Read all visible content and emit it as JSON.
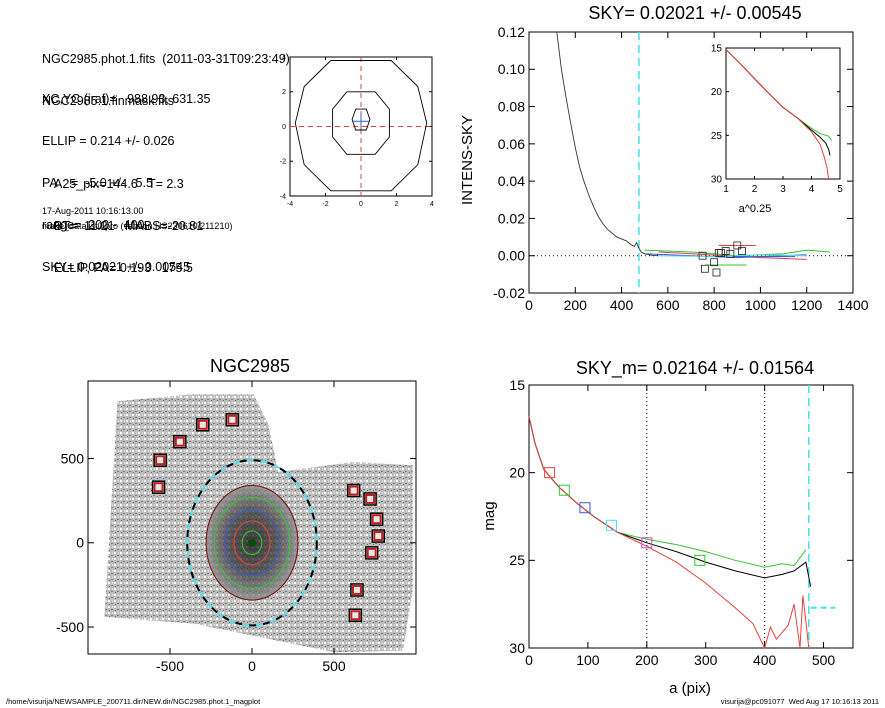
{
  "info": {
    "lines1": [
      "NGC2985.phot.1.fits  (2011-03-31T09:23:49)",
      "NGC2985.1.finmask.fits"
    ],
    "lines2": [
      "XC,YC (iraf)=   988.93, 631.35",
      "ELLIP = 0.214 +/- 0.026",
      "PA    =  -5.0 +/-   5.5",
      "range=  200.-  400.",
      "SKY= 0.02021 +/- 0.00545"
    ],
    "lines3": [
      "A25_pix=144.6   T= 2.3",
      "BT=  11.21   MABS=-20.81",
      "ELLIP, PA= 0.193   175.5"
    ],
    "date": "17-Aug-2011 10:16:13.00",
    "program": "make_datalist0.pro (version HS230610/211210)"
  },
  "footer": {
    "left": "/home/visurija/NEWSAMPLE_200711.dir/NEW.dir/NGC2985.phot.1_magplot",
    "right": "visurija@pc091077  Wed Aug 17 10:16:13 2011"
  },
  "colors": {
    "red": "#e8403f",
    "green": "#34c434",
    "blue": "#3a5ad8",
    "cyan": "#4fe0f0",
    "maroon": "#7a1111"
  },
  "chart_data": [
    {
      "id": "contour",
      "type": "contour",
      "xlim": [
        -4,
        4
      ],
      "ylim": [
        -4,
        4
      ],
      "xticks": [
        -4,
        -2,
        0,
        2,
        4
      ],
      "yticks": [
        -4,
        -2,
        0,
        2,
        4
      ],
      "xticklabels": [
        "-4",
        "-2",
        "0",
        "2",
        "4"
      ],
      "yticklabels": [
        "-4",
        "-2",
        "0",
        "2",
        "4"
      ],
      "contours": [
        [
          [
            -0.3,
            1.0
          ],
          [
            0.3,
            1.0
          ],
          [
            0.5,
            0.4
          ],
          [
            0.3,
            -0.2
          ],
          [
            -0.3,
            -0.2
          ],
          [
            -0.5,
            0.4
          ],
          [
            -0.3,
            1.0
          ]
        ],
        [
          [
            -0.8,
            2.0
          ],
          [
            0.8,
            2.0
          ],
          [
            1.6,
            1.0
          ],
          [
            1.6,
            -0.6
          ],
          [
            0.8,
            -1.6
          ],
          [
            -0.8,
            -1.6
          ],
          [
            -1.6,
            -0.6
          ],
          [
            -1.6,
            1.0
          ],
          [
            -0.8,
            2.0
          ]
        ],
        [
          [
            -1.7,
            3.8
          ],
          [
            1.7,
            3.8
          ],
          [
            3.2,
            2.3
          ],
          [
            3.7,
            0.2
          ],
          [
            3.2,
            -2.2
          ],
          [
            1.7,
            -3.7
          ],
          [
            -1.7,
            -3.7
          ],
          [
            -3.2,
            -2.2
          ],
          [
            -3.7,
            0.2
          ],
          [
            -3.2,
            2.3
          ],
          [
            -1.7,
            3.8
          ]
        ]
      ],
      "center": [
        0,
        0.3
      ]
    },
    {
      "id": "intens",
      "type": "line",
      "title": "SKY= 0.02021 +/- 0.00545",
      "xlabel": "",
      "ylabel": "INTENS-SKY",
      "xlim": [
        0,
        1400
      ],
      "ylim": [
        -0.02,
        0.12
      ],
      "xticks": [
        0,
        200,
        400,
        600,
        800,
        1000,
        1200,
        1400
      ],
      "xticklabels": [
        "0",
        "200",
        "400",
        "600",
        "800",
        "1000",
        "1200",
        "1400"
      ],
      "yticks": [
        -0.02,
        0,
        0.02,
        0.04,
        0.06,
        0.08,
        0.1,
        0.12
      ],
      "yticklabels": [
        "-0.02",
        "0.00",
        "0.02",
        "0.04",
        "0.06",
        "0.08",
        "0.10",
        "0.12"
      ],
      "sky_line_x": 475,
      "profile": {
        "x": [
          120,
          140,
          160,
          180,
          200,
          220,
          240,
          260,
          280,
          300,
          320,
          340,
          360,
          380,
          400,
          420,
          440,
          455,
          465,
          475,
          485,
          500,
          520,
          540,
          560
        ],
        "y": [
          0.12,
          0.1,
          0.085,
          0.071,
          0.058,
          0.047,
          0.039,
          0.032,
          0.026,
          0.021,
          0.017,
          0.014,
          0.012,
          0.01,
          0.009,
          0.008,
          0.006,
          0.005,
          0.007,
          0.004,
          0.002,
          0.001,
          0.0005,
          0,
          0.0005
        ]
      },
      "outer_profiles": [
        {
          "color": "red",
          "x": [
            560,
            700,
            850,
            1000,
            1200
          ],
          "y": [
            0.002,
            0.001,
            0.0,
            -0.001,
            -0.002
          ]
        },
        {
          "color": "green",
          "x": [
            500,
            700,
            900,
            1100,
            1200,
            1300
          ],
          "y": [
            0.003,
            0.002,
            0.0,
            0.001,
            0.003,
            0.002
          ]
        },
        {
          "color": "blue",
          "x": [
            500,
            700,
            900,
            1100,
            1200
          ],
          "y": [
            0.001,
            0.0,
            -0.001,
            0.0,
            0.0005
          ]
        },
        {
          "color": "cyan",
          "x": [
            560,
            800,
            1000,
            1200
          ],
          "y": [
            0.0,
            -0.0005,
            0.0005,
            0.0
          ]
        }
      ],
      "sky_boxes": {
        "x": [
          750,
          800,
          820,
          850,
          870,
          900,
          920,
          760,
          810,
          830
        ],
        "y": [
          0.0,
          -0.0035,
          0.0015,
          0.0025,
          0.001,
          0.0055,
          0.0025,
          -0.007,
          -0.009,
          0.0015
        ]
      },
      "flat_segments": [
        {
          "color": "red",
          "x": [
            820,
            980
          ],
          "y": [
            0.0055,
            0.0055
          ]
        },
        {
          "color": "green",
          "x": [
            760,
            940
          ],
          "y": [
            -0.005,
            -0.005
          ]
        },
        {
          "color": "blue",
          "x": [
            880,
            1150
          ],
          "y": [
            -0.0005,
            -0.0005
          ]
        }
      ]
    },
    {
      "id": "inset",
      "type": "line",
      "xlabel": "a^0.25",
      "ylabel": "",
      "xlim": [
        1,
        5
      ],
      "ylim": [
        30,
        15
      ],
      "xticks": [
        1,
        2,
        3,
        4,
        5
      ],
      "xticklabels": [
        "1",
        "2",
        "3",
        "4",
        "5"
      ],
      "yticks": [
        15,
        20,
        25,
        30
      ],
      "yticklabels": [
        "15",
        "20",
        "25",
        "30"
      ],
      "series": [
        {
          "color": "green",
          "x": [
            1.0,
            1.5,
            2.0,
            2.5,
            3.0,
            3.5,
            4.0,
            4.3,
            4.6,
            4.7
          ],
          "y": [
            15.2,
            16.8,
            18.5,
            20.2,
            21.8,
            23.0,
            24.2,
            24.8,
            25.1,
            25.6
          ]
        },
        {
          "color": "black",
          "x": [
            1.0,
            1.5,
            2.0,
            2.5,
            3.0,
            3.5,
            4.0,
            4.3,
            4.5,
            4.6,
            4.65
          ],
          "y": [
            15.2,
            16.8,
            18.5,
            20.2,
            21.8,
            23.0,
            24.4,
            25.2,
            25.9,
            26.6,
            27.3
          ]
        },
        {
          "color": "red",
          "x": [
            1.0,
            1.5,
            2.0,
            2.5,
            3.0,
            3.5,
            4.0,
            4.3,
            4.45,
            4.55,
            4.6
          ],
          "y": [
            15.2,
            16.8,
            18.5,
            20.2,
            21.8,
            23.0,
            24.6,
            26.0,
            27.5,
            28.8,
            30.0
          ]
        }
      ]
    },
    {
      "id": "image",
      "type": "image",
      "title": "NGC2985",
      "xlim": [
        -1000,
        1000
      ],
      "ylim": [
        -660,
        960
      ],
      "xticks": [
        -500,
        0,
        500
      ],
      "xticklabels": [
        "-500",
        "0",
        "500"
      ],
      "yticks": [
        -500,
        0,
        500
      ],
      "yticklabels": [
        "-500",
        "0",
        "500"
      ],
      "field_polygon": [
        [
          -820,
          840
        ],
        [
          -380,
          880
        ],
        [
          10,
          880
        ],
        [
          100,
          700
        ],
        [
          160,
          420
        ],
        [
          620,
          480
        ],
        [
          980,
          460
        ],
        [
          980,
          -280
        ],
        [
          920,
          -640
        ],
        [
          500,
          -650
        ],
        [
          -350,
          -480
        ],
        [
          -900,
          -440
        ]
      ],
      "mask_boxes": {
        "x": [
          -570,
          -560,
          -440,
          -300,
          -120,
          620,
          720,
          760,
          770,
          730,
          640,
          630
        ],
        "y": [
          330,
          490,
          600,
          700,
          730,
          310,
          260,
          140,
          40,
          -60,
          -280,
          -430
        ]
      },
      "ellipses": [
        {
          "color": "maroon",
          "a": 280,
          "b": 340
        },
        {
          "color": "cyan",
          "a": 395,
          "b": 490
        },
        {
          "color": "black",
          "a": 395,
          "b": 490
        },
        {
          "color": "green",
          "a": 230,
          "b": 270
        },
        {
          "color": "blue",
          "a": 165,
          "b": 195
        },
        {
          "color": "red",
          "a": 110,
          "b": 130
        },
        {
          "color": "green",
          "a": 60,
          "b": 70
        }
      ]
    },
    {
      "id": "mag",
      "type": "line",
      "title": "SKY_m=  0.02164 +/- 0.01564",
      "xlabel": "a (pix)",
      "ylabel": "mag",
      "xlim": [
        0,
        550
      ],
      "ylim": [
        30,
        15
      ],
      "xticks": [
        0,
        100,
        200,
        300,
        400,
        500
      ],
      "xticklabels": [
        "0",
        "100",
        "200",
        "300",
        "400",
        "500"
      ],
      "yticks": [
        15,
        20,
        25,
        30
      ],
      "yticklabels": [
        "15",
        "20",
        "25",
        "30"
      ],
      "dotted_x": [
        200,
        400
      ],
      "cyan_x": 475,
      "series": [
        {
          "color": "green",
          "x": [
            0,
            10,
            25,
            50,
            80,
            110,
            150,
            200,
            250,
            300,
            350,
            400,
            430,
            450,
            470
          ],
          "y": [
            16.8,
            18.3,
            19.8,
            20.8,
            21.7,
            22.5,
            23.4,
            23.8,
            24.1,
            24.5,
            25.0,
            25.4,
            25.2,
            25.3,
            24.4
          ]
        },
        {
          "color": "black",
          "x": [
            0,
            10,
            25,
            50,
            80,
            110,
            150,
            200,
            250,
            300,
            350,
            400,
            430,
            450,
            470,
            478
          ],
          "y": [
            16.8,
            18.3,
            19.8,
            20.8,
            21.7,
            22.5,
            23.4,
            24.0,
            24.5,
            25.1,
            25.6,
            26.0,
            25.8,
            25.6,
            25.1,
            26.5
          ]
        },
        {
          "color": "red",
          "x": [
            0,
            10,
            25,
            50,
            80,
            110,
            150,
            200,
            250,
            300,
            350,
            380,
            400,
            410,
            420,
            440,
            450,
            460,
            465,
            470,
            475
          ],
          "y": [
            16.8,
            18.3,
            19.8,
            20.8,
            21.7,
            22.5,
            23.4,
            24.2,
            25.1,
            26.3,
            27.7,
            28.6,
            30.0,
            28.8,
            29.5,
            28.7,
            27.5,
            30.0,
            27.0,
            28.5,
            30.0
          ]
        }
      ],
      "cyan_tail": {
        "x": [
          478,
          490,
          520
        ],
        "y": [
          27.7,
          27.7,
          27.7
        ]
      },
      "boxes": [
        {
          "color": "red",
          "x": 35,
          "y": 20.0
        },
        {
          "color": "green",
          "x": 60,
          "y": 21.0
        },
        {
          "color": "blue",
          "x": 95,
          "y": 22.0
        },
        {
          "color": "cyan",
          "x": 140,
          "y": 23.0
        },
        {
          "color": "magenta",
          "x": 200,
          "y": 24.0
        },
        {
          "color": "green",
          "x": 290,
          "y": 25.0
        }
      ]
    }
  ]
}
